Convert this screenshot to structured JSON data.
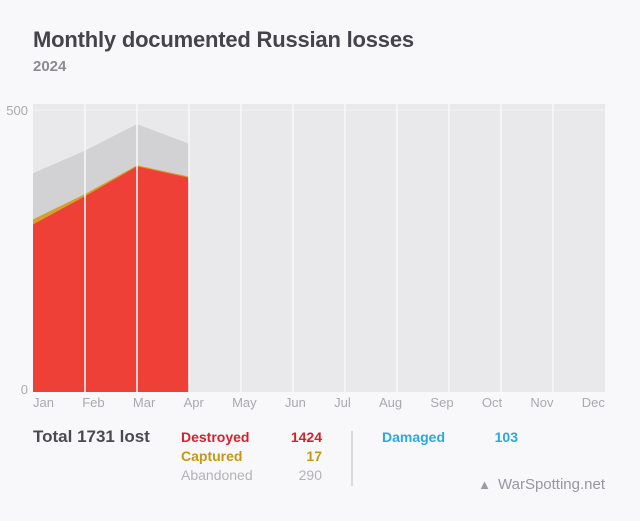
{
  "header": {
    "title": "Monthly documented Russian losses",
    "subtitle": "2024"
  },
  "chart_data": {
    "type": "area",
    "stacked": true,
    "title": "Monthly documented Russian losses",
    "subtitle": "2024",
    "x": [
      "Jan",
      "Feb",
      "Mar",
      "Apr",
      "May",
      "Jun",
      "Jul",
      "Aug",
      "Sep",
      "Oct",
      "Nov",
      "Dec"
    ],
    "series": [
      {
        "name": "Destroyed",
        "color": "#ee4037",
        "values": [
          297,
          347,
          400,
          380
        ]
      },
      {
        "name": "Captured",
        "color": "#d5a02b",
        "values": [
          9,
          4,
          2,
          2
        ]
      },
      {
        "name": "Abandoned",
        "color": "#d2d2d4",
        "values": [
          82,
          77,
          73,
          58
        ]
      }
    ],
    "monthly_totals": [
      388,
      428,
      475,
      440
    ],
    "ylim": [
      0,
      500
    ],
    "ytick_labels": [
      "500",
      "0"
    ],
    "grid": "vertical-white-lines",
    "grid_color": "#f7f7f8",
    "plot_background": "#e9e9eb",
    "legend_position": "bottom"
  },
  "summary": {
    "total_label": "Total 1731 lost",
    "items": [
      {
        "label": "Destroyed",
        "value": "1424",
        "color": "#d2232a"
      },
      {
        "label": "Captured",
        "value": "17",
        "color": "#c5990f"
      },
      {
        "label": "Abandoned",
        "value": "290",
        "color": "#b3b3b7"
      }
    ],
    "damaged": {
      "label": "Damaged",
      "value": "103",
      "color": "#29a9e0"
    },
    "watermark": {
      "icon": "triangle-up-icon",
      "glyph": "▲",
      "text": "WarSpotting.net"
    }
  }
}
